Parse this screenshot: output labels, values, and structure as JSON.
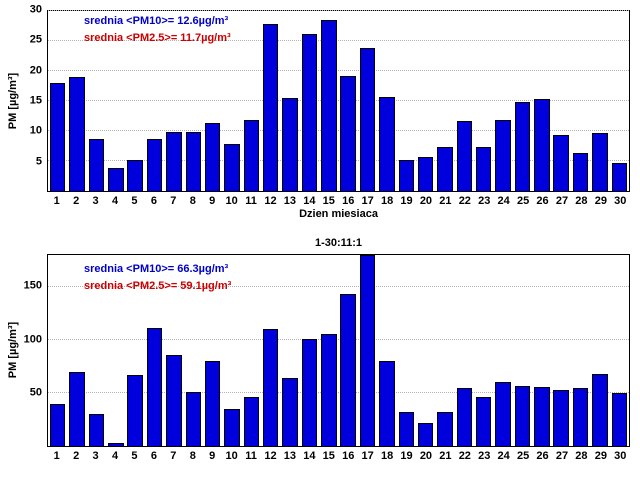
{
  "colors": {
    "bar_fill": "#0000dd",
    "bar_edge": "#000000",
    "grid": "#b3b3b3",
    "blue_text": "#0000cc",
    "red_text": "#cc0000"
  },
  "chart_data": [
    {
      "type": "bar",
      "title": "",
      "xlabel": "Dzien miesiaca",
      "ylabel": "PM [µg/m³]",
      "ylim": [
        0,
        30
      ],
      "yticks": [
        5,
        10,
        15,
        20,
        25,
        30
      ],
      "grid": "on",
      "categories": [
        "1",
        "2",
        "3",
        "4",
        "5",
        "6",
        "7",
        "8",
        "9",
        "10",
        "11",
        "12",
        "13",
        "14",
        "15",
        "16",
        "17",
        "18",
        "19",
        "20",
        "21",
        "22",
        "23",
        "24",
        "25",
        "26",
        "27",
        "28",
        "29",
        "30"
      ],
      "values": [
        18,
        19,
        8.7,
        3.8,
        5.2,
        8.7,
        9.8,
        9.9,
        11.3,
        7.8,
        11.8,
        27.8,
        15.5,
        26.1,
        28.5,
        19.1,
        23.8,
        15.6,
        5.2,
        5.6,
        7.3,
        11.7,
        7.3,
        11.8,
        14.8,
        15.4,
        9.3,
        6.4,
        9.6,
        4.7
      ],
      "annotations": {
        "pm10": "srednia <PM10>= 12.6µg/m³",
        "pm25": "srednia <PM2.5>= 11.7µg/m³"
      }
    },
    {
      "type": "bar",
      "title": "1-30:11:1",
      "xlabel": "",
      "ylabel": "PM [µg/m³]",
      "ylim": [
        0,
        180
      ],
      "yticks": [
        50,
        100,
        150
      ],
      "grid": "on",
      "categories": [
        "1",
        "2",
        "3",
        "4",
        "5",
        "6",
        "7",
        "8",
        "9",
        "10",
        "11",
        "12",
        "13",
        "14",
        "15",
        "16",
        "17",
        "18",
        "19",
        "20",
        "21",
        "22",
        "23",
        "24",
        "25",
        "26",
        "27",
        "28",
        "29",
        "30"
      ],
      "values": [
        40,
        70,
        30,
        3,
        67,
        111,
        86,
        51,
        80,
        35,
        46,
        110,
        64,
        101,
        106,
        143,
        180,
        80,
        32,
        22,
        32,
        55,
        46,
        60,
        57,
        56,
        53,
        55,
        68,
        50
      ],
      "annotations": {
        "pm10": "srednia <PM10>= 66.3µg/m³",
        "pm25": "srednia <PM2.5>= 59.1µg/m³"
      }
    }
  ]
}
